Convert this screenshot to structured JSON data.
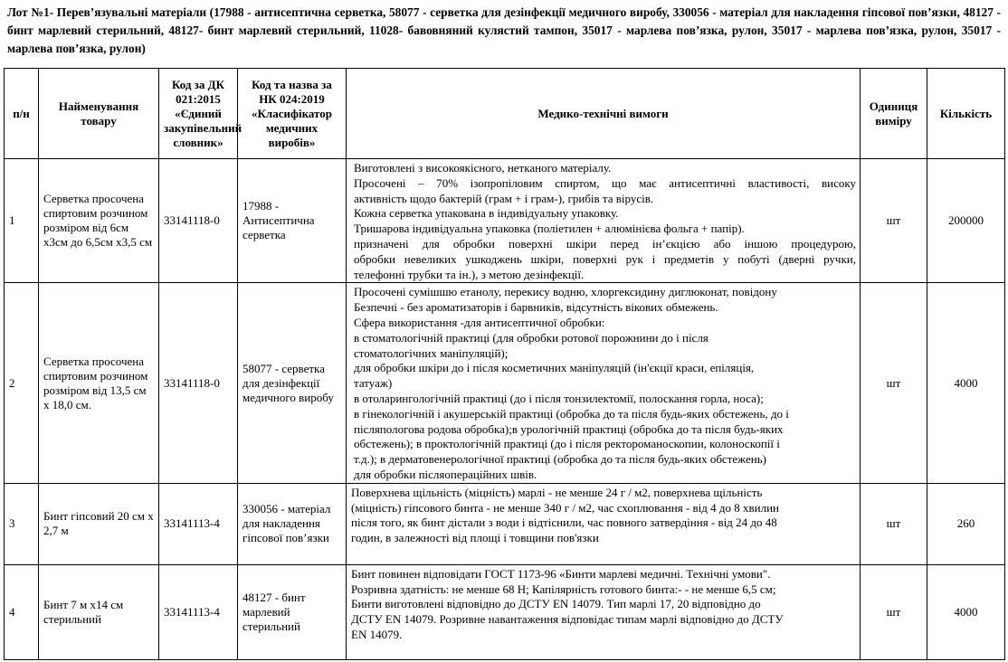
{
  "title": "Лот №1- Перев’язувальні матеріали (17988 - антисептична серветка, 58077 - серветка для дезінфекції медичного виробу, 330056 - матеріал для накладення гіпсової пов’язки, 48127 - бинт марлевий стерильний, 48127- бинт марлевий стерильний, 11028- бавовняний кулястий тампон, 35017 - марлева пов’язка, рулон, 35017 - марлева пов’язка, рулон, 35017 - марлева пов’язка, рулон)",
  "table": {
    "headers": [
      "п/н",
      "Найменування товару",
      "Код за ДК 021:2015 «Єдиний закупівельний словник»",
      "Код та назва за НК 024:2019 «Класифікатор медичних виробів»",
      "Медико-технічні вимоги",
      "Одиниця виміру",
      "Кількість"
    ],
    "rows": [
      {
        "n": "1",
        "name": "Серветка просочена спиртовим розчином розміром від 6см х3см до 6,5см х3,5 см",
        "dk": "33141118-0",
        "nk": "17988 - Антисептична серветка",
        "req": [
          " Виготовлені з високоякісного, нетканого матеріалу.",
          "Просочені – 70% ізопропіловим спиртом, що має антисептичні властивості, високу",
          "активність щодо бактерій (грам + і грам-), грибів та вірусів.",
          "Кожна серветка упакована в індивідуальну упаковку.",
          "Тришарова індивідуальна упаковка (поліетилен + алюмінієва фольга + папір).",
          "призначені для обробки поверхні шкіри перед ін’єкцією або іншою процедурою,",
          "обробки невеликих ушкоджень шкіри, поверхні рук і предметів у побуті (дверні ручки,",
          "телефонні трубки та ін.), з метою дезінфекції."
        ],
        "unit": "шт",
        "qty": "200000"
      },
      {
        "n": "2",
        "name": "Серветка просочена спиртовим розчином розміром від 13,5 см х 18,0 см.",
        "dk": "33141118-0",
        "nk": "58077 - серветка для дезінфекції медичного виробу",
        "req": [
          "Просочені сумішшю етанолу, перекису водню, хлоргексидину диглюконат, повідону",
          "Безпечні - без ароматизаторів і барвників, відсутність вікових обмежень.",
          "Сфера використання -для антисептичної обробки:",
          "в стоматологічній практиці (для обробки ротової порожнини до і після",
          "стоматологічних маніпуляцій);",
          "для обробки шкіри до і після косметичних маніпуляцій (ін'єкції краси, епіляція,",
          "татуаж)",
          "в отоларингологічній практиці (до і після тонзилектомії, полоскання горла, носа);",
          "в гінекологічній і акушерській практиці (обробка до та після будь-яких обстежень, до і",
          "післяпологова родова обробка);в урологічній практиці (обробка до та після будь-яких",
          "обстежень); в проктологічній практиці (до і після ректороманоскопии, колоноскопії і",
          "т.д.); в дерматовенерологічної практиці (обробка до та після будь-яких обстежень)",
          "для обробки післяопераційних швів."
        ],
        "unit": "шт",
        "qty": "4000"
      },
      {
        "n": "3",
        "name": "Бинт гіпсовий 20 см х 2,7 м",
        "dk": "33141113-4",
        "nk": "330056 - матеріал для накладення гіпсової пов’язки",
        "req": [
          "Поверхнева щільність (міцність) марлі - не менше 24 г / м2, поверхнева щільність",
          "(міцність) гіпсового бинта - не менше 340 г / м2, час схоплювання - від 4 до 8 хвилин",
          "після того, як бинт дістали з води і відтіснили, час повного затвердіння - від 24 до 48",
          "годин, в залежності від площі і товщини пов'язки"
        ],
        "unit": "шт",
        "qty": "260"
      },
      {
        "n": "4",
        "name": "Бинт 7 м х14 см стерильний",
        "dk": "33141113-4",
        "nk": "48127 - бинт марлевий стерильний",
        "req": [
          "Бинт повинен відповідати ГОСТ 1173-96 «Бинти марлеві медичні. Технічні умови\".",
          "Розривна здатність:  не менше 68 Н; Капілярність готового бинта:- - не менше 6,5 см;",
          "Бинти виготовлені відповідно до ДСТУ EN 14079. Тип марлі 17, 20 відповідно до",
          "ДСТУ EN 14079. Розривне навантаження відповідає типам марлі відповідно до ДСТУ",
          "EN 14079."
        ],
        "unit": "шт",
        "qty": "4000"
      }
    ]
  }
}
